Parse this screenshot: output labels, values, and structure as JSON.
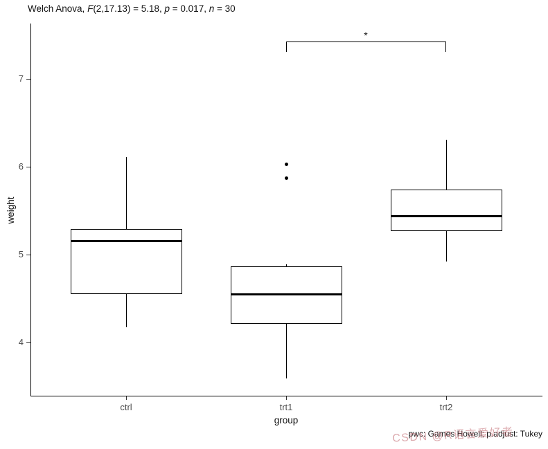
{
  "title": {
    "prefix": "Welch Anova, ",
    "f": "F",
    "f_rest": "(2,17.13) = 5.18, ",
    "p": "p",
    "p_rest": " = 0.017, ",
    "n": "n",
    "n_rest": " = 30"
  },
  "chart_data": {
    "type": "boxplot",
    "title": "Welch Anova, F(2,17.13) = 5.18, p = 0.017, n = 30",
    "xlabel": "group",
    "ylabel": "weight",
    "categories": [
      "ctrl",
      "trt1",
      "trt2"
    ],
    "yticks": [
      4,
      5,
      6,
      7
    ],
    "ylim": [
      3.4,
      7.6
    ],
    "grid": false,
    "legend": false,
    "series": [
      {
        "name": "ctrl",
        "whisker_low": 4.17,
        "q1": 4.55,
        "median": 5.155,
        "q3": 5.29,
        "whisker_high": 6.11,
        "outliers": []
      },
      {
        "name": "trt1",
        "whisker_low": 3.59,
        "q1": 4.21,
        "median": 4.55,
        "q3": 4.87,
        "whisker_high": 4.89,
        "outliers": [
          5.87,
          6.03
        ]
      },
      {
        "name": "trt2",
        "whisker_low": 4.92,
        "q1": 5.27,
        "median": 5.44,
        "q3": 5.74,
        "whisker_high": 6.31,
        "outliers": []
      }
    ],
    "significance": {
      "pair": [
        "trt1",
        "trt2"
      ],
      "label": "*"
    }
  },
  "caption": "pwc: Games Howell; p.adjust: Tukey",
  "watermark": "CSDN @R语言爱好者",
  "colors": {
    "stroke": "#000000",
    "axis_text": "#4d4d4d",
    "watermark": "#c6767c",
    "background": "#ffffff"
  }
}
